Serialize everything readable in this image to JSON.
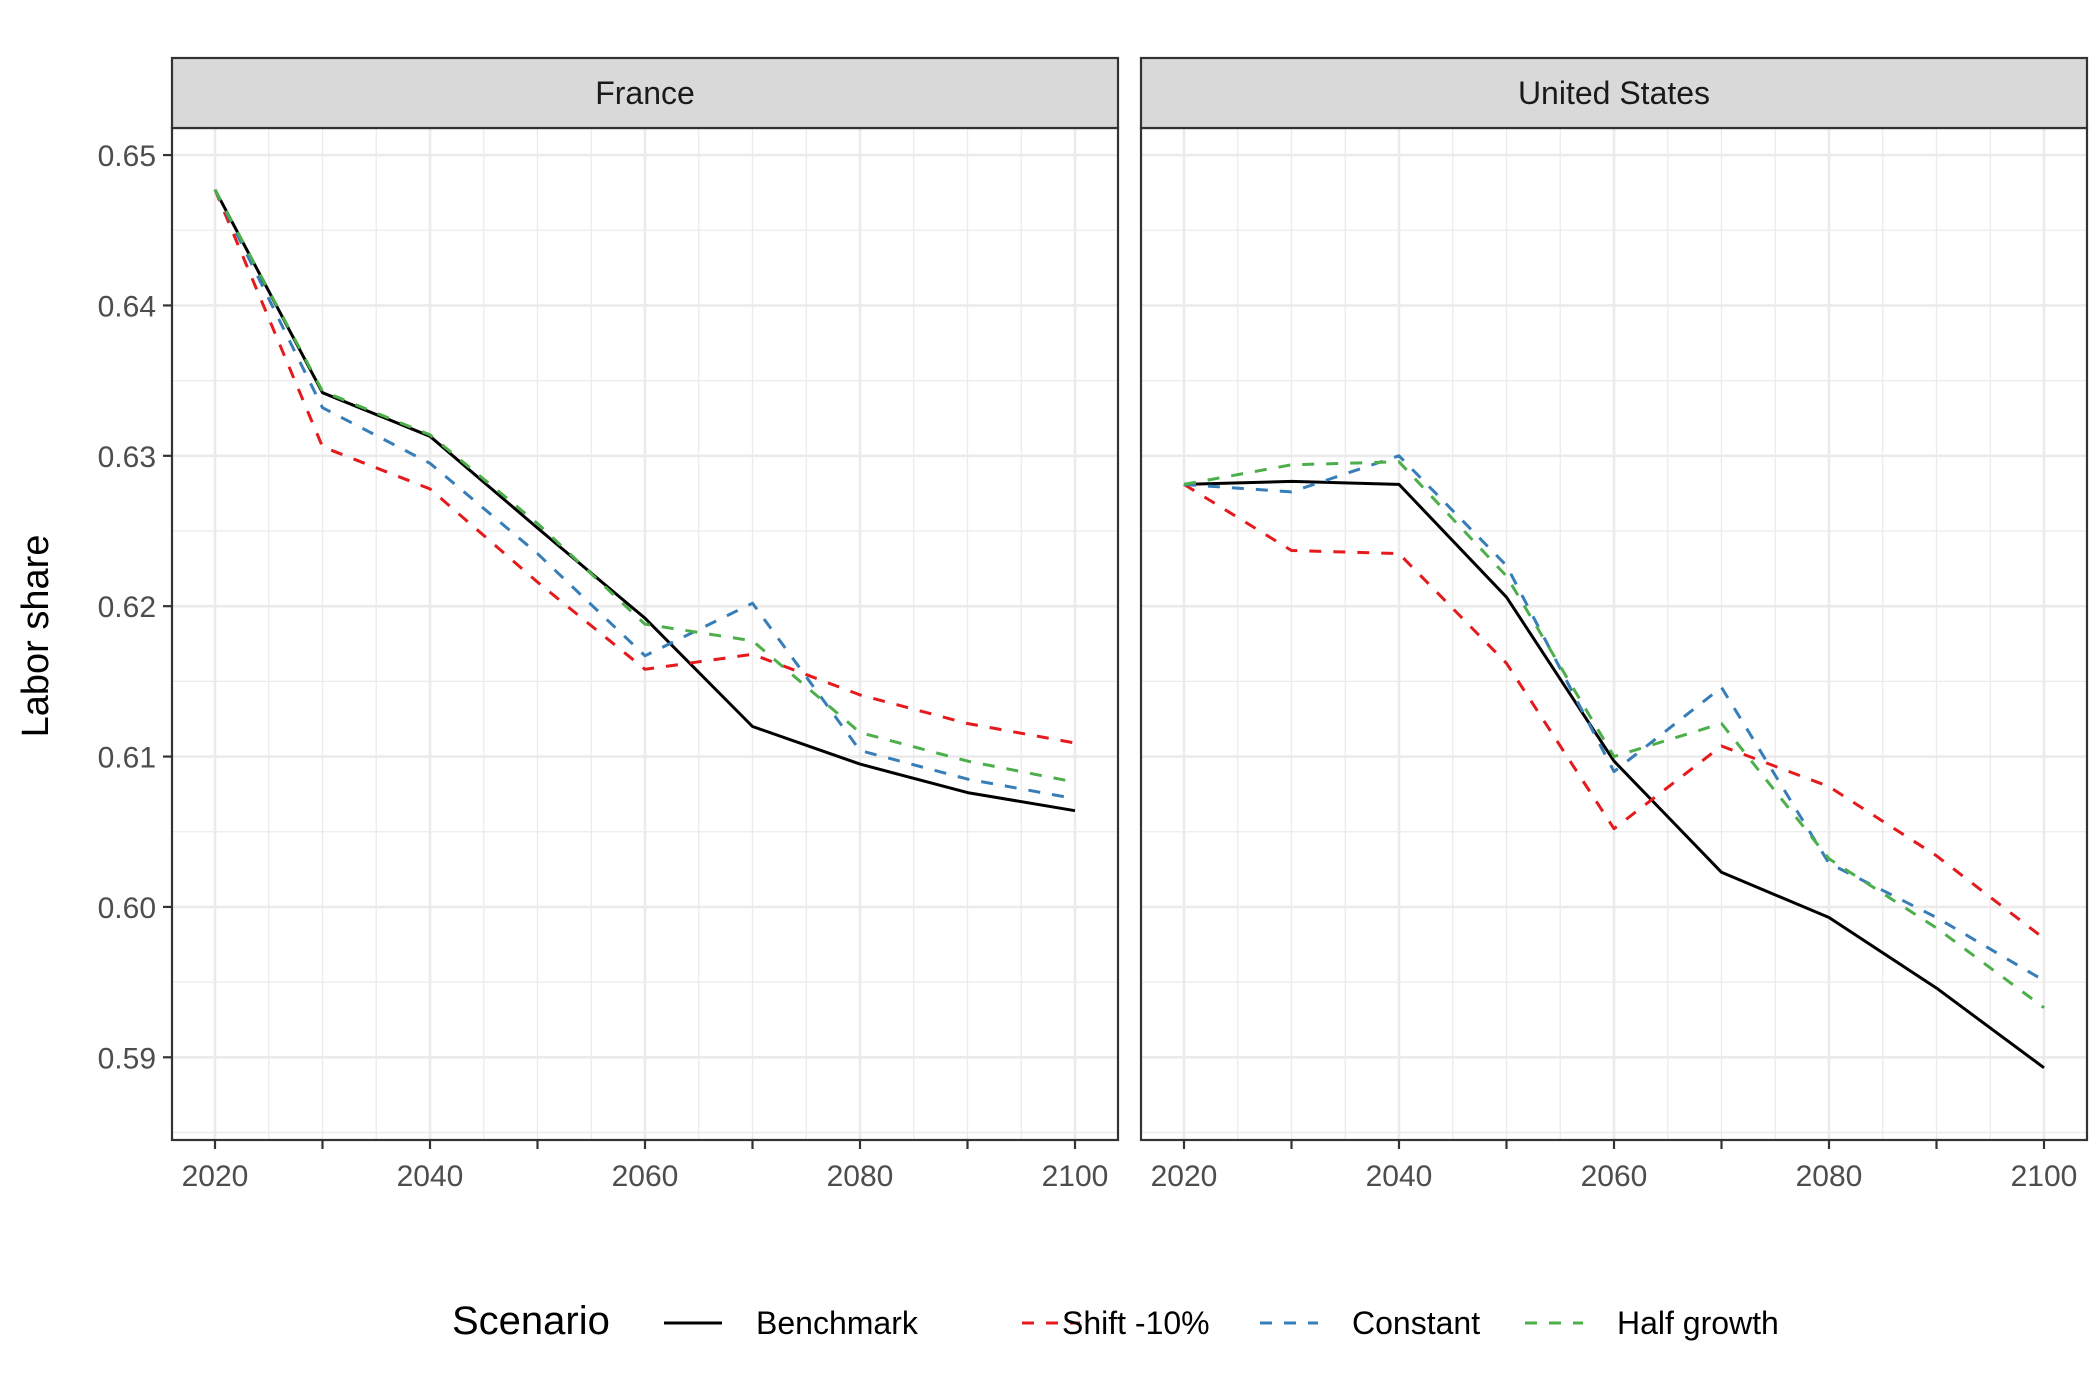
{
  "chart_data": {
    "type": "line",
    "ylabel": "Labor share",
    "ylim": [
      0.5845,
      0.6518
    ],
    "xlim": [
      2016,
      2104
    ],
    "x_ticks": [
      2020,
      2040,
      2060,
      2080,
      2100
    ],
    "y_ticks": [
      0.59,
      0.6,
      0.61,
      0.62,
      0.63,
      0.64,
      0.65
    ],
    "y_tick_labels": [
      "0.59",
      "0.60",
      "0.61",
      "0.62",
      "0.63",
      "0.64",
      "0.65"
    ],
    "grid": true,
    "legend": {
      "title": "Scenario",
      "position": "bottom",
      "entries": [
        "Benchmark",
        "Shift -10%",
        "Constant",
        "Half growth"
      ]
    },
    "series_styles": [
      {
        "name": "Benchmark",
        "color": "#000000",
        "dash": "solid"
      },
      {
        "name": "Shift -10%",
        "color": "#e41a1c",
        "dash": "dashed"
      },
      {
        "name": "Constant",
        "color": "#377eb8",
        "dash": "dashed"
      },
      {
        "name": "Half growth",
        "color": "#4daf4a",
        "dash": "dashed"
      }
    ],
    "panels": [
      {
        "title": "France",
        "x": [
          2020,
          2030,
          2040,
          2050,
          2060,
          2070,
          2080,
          2090,
          2100
        ],
        "series": [
          {
            "name": "Benchmark",
            "values": [
              0.6477,
              0.6342,
              0.6313,
              0.6252,
              0.6192,
              0.612,
              0.6095,
              0.6076,
              0.6064
            ]
          },
          {
            "name": "Shift -10%",
            "values": [
              0.6477,
              0.6306,
              0.6278,
              0.6216,
              0.6158,
              0.6168,
              0.6141,
              0.6122,
              0.6109
            ]
          },
          {
            "name": "Constant",
            "values": [
              0.6477,
              0.6332,
              0.6295,
              0.6235,
              0.6167,
              0.6202,
              0.6104,
              0.6085,
              0.6072
            ]
          },
          {
            "name": "Half growth",
            "values": [
              0.6477,
              0.6343,
              0.6314,
              0.6255,
              0.6188,
              0.6177,
              0.6116,
              0.6097,
              0.6083
            ]
          }
        ]
      },
      {
        "title": "United States",
        "x": [
          2020,
          2030,
          2040,
          2050,
          2060,
          2070,
          2080,
          2090,
          2100
        ],
        "series": [
          {
            "name": "Benchmark",
            "values": [
              0.6281,
              0.6283,
              0.6281,
              0.6206,
              0.6097,
              0.6023,
              0.5993,
              0.5946,
              0.5893
            ]
          },
          {
            "name": "Shift -10%",
            "values": [
              0.6281,
              0.6237,
              0.6235,
              0.6162,
              0.6052,
              0.6107,
              0.608,
              0.6034,
              0.5979
            ]
          },
          {
            "name": "Constant",
            "values": [
              0.6281,
              0.6276,
              0.63,
              0.6227,
              0.609,
              0.6146,
              0.6029,
              0.5993,
              0.5951
            ]
          },
          {
            "name": "Half growth",
            "values": [
              0.6281,
              0.6294,
              0.6296,
              0.622,
              0.61,
              0.6122,
              0.6032,
              0.5986,
              0.5933
            ]
          }
        ]
      }
    ]
  }
}
